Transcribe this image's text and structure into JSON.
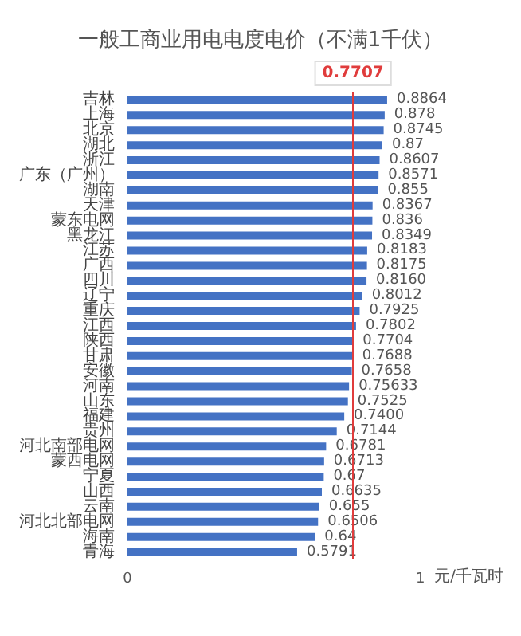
{
  "chart_data": {
    "type": "bar",
    "orientation": "horizontal",
    "title": "一般工商业用电电度电价（不满1千伏）",
    "xlabel": "元/千瓦时",
    "categories": [
      "吉林",
      "上海",
      "北京",
      "湖北",
      "浙江",
      "广东（广州）",
      "湖南",
      "天津",
      "蒙东电网",
      "黑龙江",
      "江苏",
      "广西",
      "四川",
      "辽宁",
      "重庆",
      "江西",
      "陕西",
      "甘肃",
      "安徽",
      "河南",
      "山东",
      "福建",
      "贵州",
      "河北南部电网",
      "蒙西电网",
      "宁夏",
      "山西",
      "云南",
      "河北北部电网",
      "海南",
      "青海"
    ],
    "values": [
      0.8864,
      0.878,
      0.8745,
      0.87,
      0.8607,
      0.8571,
      0.855,
      0.8367,
      0.836,
      0.8349,
      0.8183,
      0.8175,
      0.816,
      0.8012,
      0.7925,
      0.7802,
      0.7704,
      0.7688,
      0.7658,
      0.75633,
      0.7525,
      0.74,
      0.7144,
      0.6781,
      0.6713,
      0.67,
      0.6635,
      0.655,
      0.6506,
      0.64,
      0.5791
    ],
    "value_labels": [
      "0.8864",
      "0.878",
      "0.8745",
      "0.87",
      "0.8607",
      "0.8571",
      "0.855",
      "0.8367",
      "0.836",
      "0.8349",
      "0.8183",
      "0.8175",
      "0.8160",
      "0.8012",
      "0.7925",
      "0.7802",
      "0.7704",
      "0.7688",
      "0.7658",
      "0.75633",
      "0.7525",
      "0.7400",
      "0.7144",
      "0.6781",
      "0.6713",
      "0.67",
      "0.6635",
      "0.655",
      "0.6506",
      "0.64",
      "0.5791"
    ],
    "color": "#4472c4",
    "xlim": [
      0,
      1
    ],
    "xticks": [
      0,
      1
    ],
    "grid": false,
    "ref_lines": [
      {
        "axis": "x",
        "value": 0.7707,
        "label": "0.7707",
        "color": "#e03c3c"
      }
    ]
  }
}
